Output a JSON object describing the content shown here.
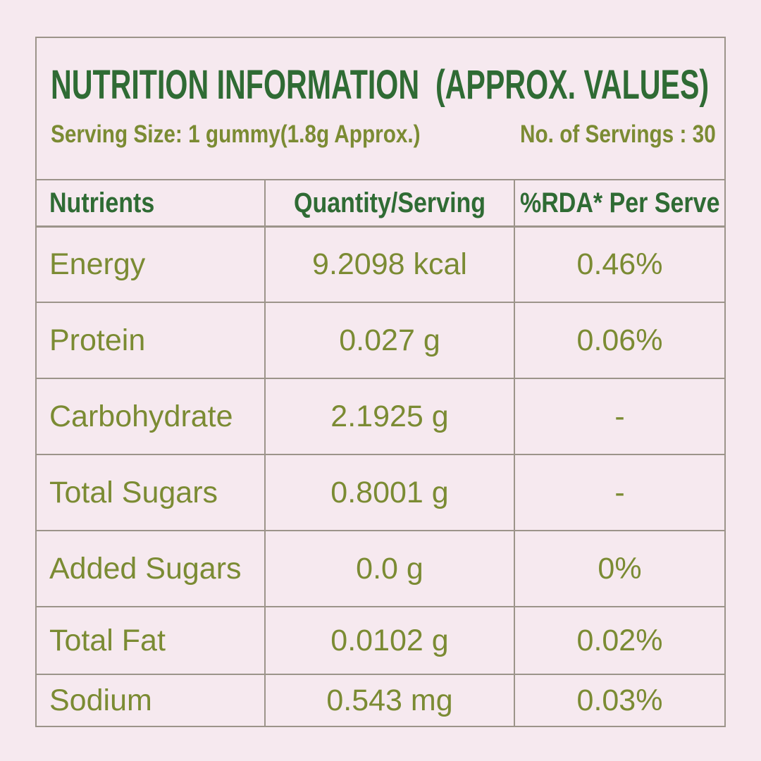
{
  "colors": {
    "background": "#f6e9ef",
    "title_green": "#2f6b34",
    "olive_green": "#7b8b33",
    "border_gray": "#9c948a"
  },
  "title": "NUTRITION INFORMATION  (APPROX. VALUES)",
  "serving_info": {
    "serving_size": "Serving Size: 1 gummy(1.8g Approx.)",
    "servings_count": "No. of Servings : 30"
  },
  "table": {
    "headers": {
      "nutrients": "Nutrients",
      "quantity": "Quantity/Serving",
      "rda": "%RDA* Per Serve"
    },
    "rows": [
      {
        "nutrient": "Energy",
        "quantity": "9.2098 kcal",
        "rda": "0.46%"
      },
      {
        "nutrient": "Protein",
        "quantity": "0.027 g",
        "rda": "0.06%"
      },
      {
        "nutrient": "Carbohydrate",
        "quantity": "2.1925 g",
        "rda": "-"
      },
      {
        "nutrient": "Total Sugars",
        "quantity": "0.8001 g",
        "rda": "-"
      },
      {
        "nutrient": "Added Sugars",
        "quantity": "0.0 g",
        "rda": "0%"
      },
      {
        "nutrient": "Total Fat",
        "quantity": "0.0102 g",
        "rda": "0.02%"
      },
      {
        "nutrient": "Sodium",
        "quantity": "0.543 mg",
        "rda": "0.03%"
      }
    ]
  }
}
